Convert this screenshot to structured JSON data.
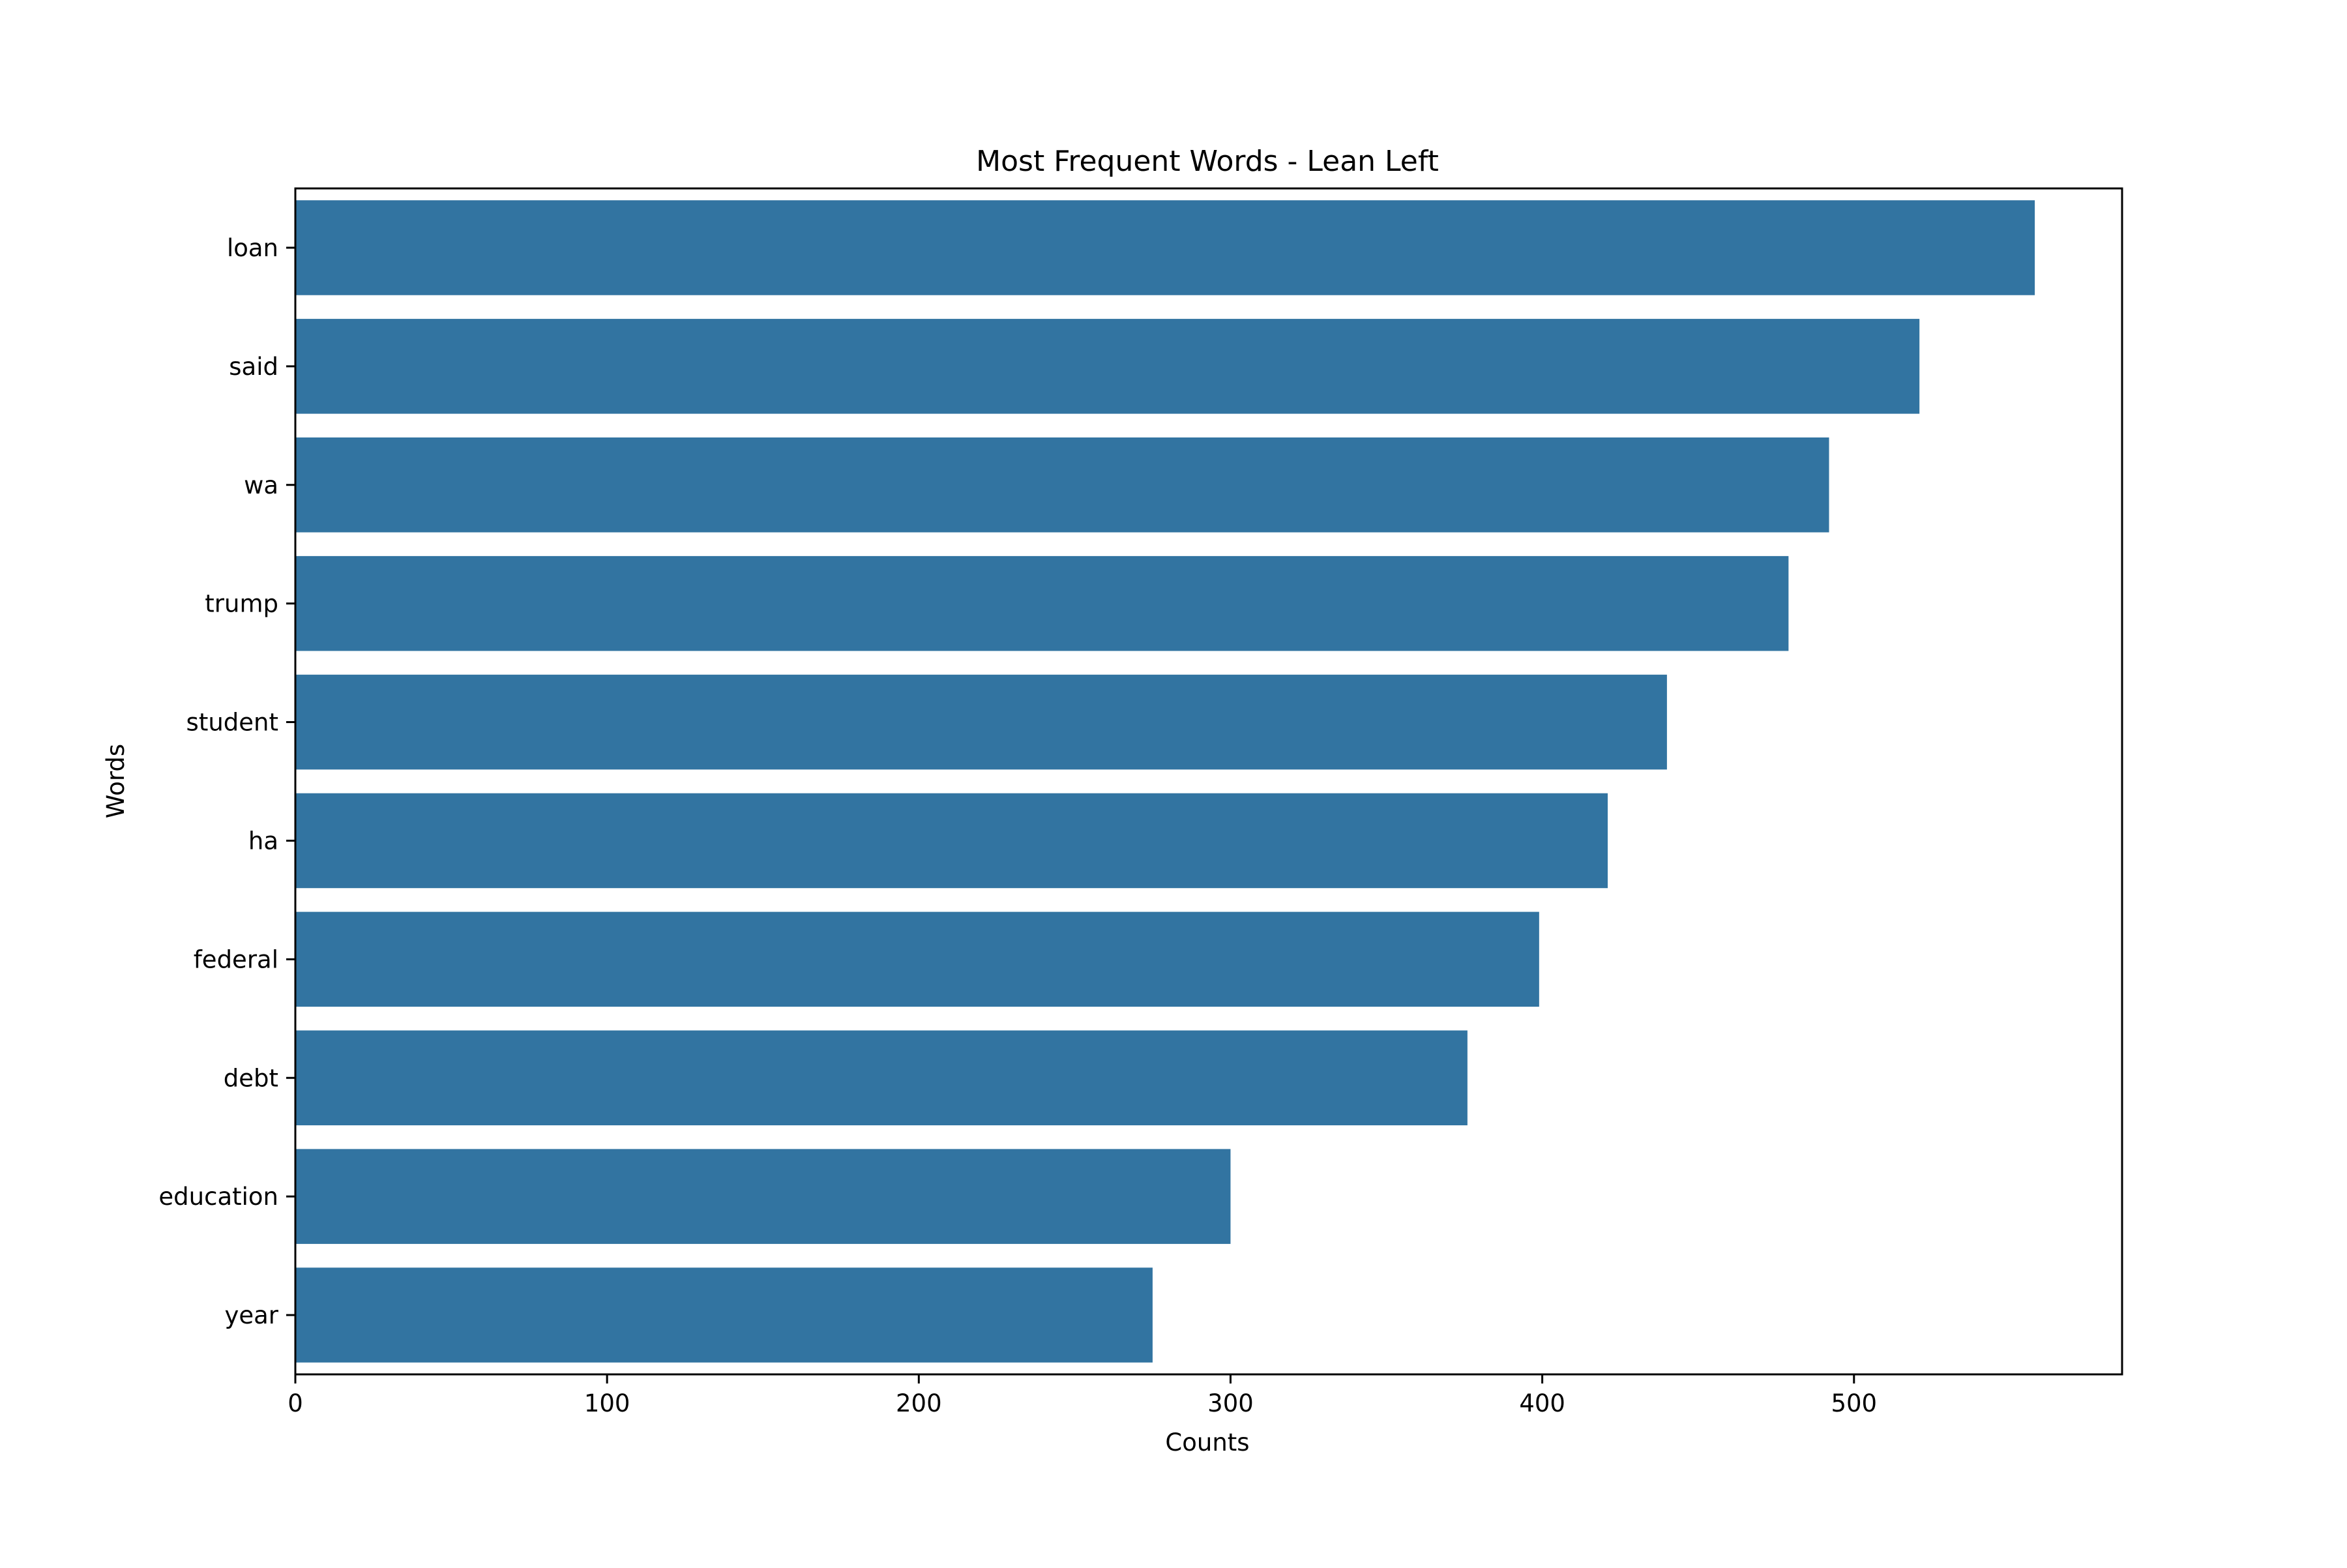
{
  "chart_data": {
    "type": "bar",
    "orientation": "horizontal",
    "title": "Most Frequent Words - Lean Left",
    "xlabel": "Counts",
    "ylabel": "Words",
    "categories": [
      "loan",
      "said",
      "wa",
      "trump",
      "student",
      "ha",
      "federal",
      "debt",
      "education",
      "year"
    ],
    "values": [
      558,
      521,
      492,
      479,
      440,
      421,
      399,
      376,
      300,
      275
    ],
    "xlim": [
      0,
      586
    ],
    "xticks": [
      0,
      100,
      200,
      300,
      400,
      500
    ],
    "grid": false,
    "bar_color": "#3274a1"
  }
}
